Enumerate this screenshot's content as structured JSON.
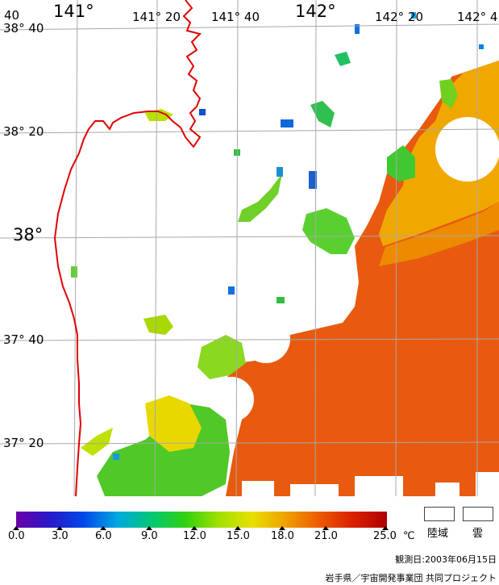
{
  "map": {
    "lon_labels": [
      "141°",
      "141° 20",
      "141° 40",
      "142°",
      "142° 20",
      "142° 4"
    ],
    "top_left_label": "40",
    "lat_labels": [
      "38° 40",
      "38° 20",
      "38°",
      "37° 40",
      "37° 20"
    ]
  },
  "colorbar": {
    "ticks": [
      "0.0",
      "3.0",
      "6.0",
      "9.0",
      "12.0",
      "15.0",
      "18.0",
      "21.0",
      "25.0"
    ],
    "unit": "℃",
    "colors": [
      "#6a00a8",
      "#2a18c8",
      "#0048e8",
      "#00a8e0",
      "#00c878",
      "#30d010",
      "#a0e000",
      "#e8e000",
      "#f0a000",
      "#ec5a00",
      "#d82000",
      "#b00000"
    ]
  },
  "legend": {
    "land_label": "陸域",
    "cloud_label": "雲"
  },
  "footer": {
    "date": "観測日:2003年06月15日",
    "credit": "岩手県／宇宙開発事業団 共同プロジェクト"
  },
  "colors": {
    "coastline": "#e00000",
    "grid": "#a8a8a8",
    "warm_water": "#e85a10",
    "mid_water": "#f0b000",
    "cool_water": "#60d020",
    "cold_water": "#1070d0"
  }
}
